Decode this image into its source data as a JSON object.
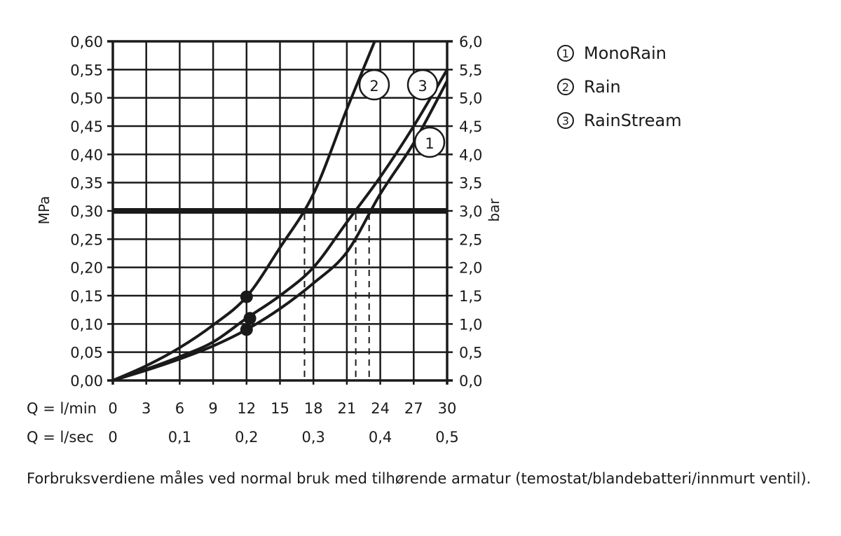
{
  "chart_data": {
    "type": "line",
    "title": "",
    "xlabel": "Q = l/min",
    "xlabel_secondary": "Q = l/sec",
    "ylabel": "MPa",
    "ylabel_right": "bar",
    "xlim": [
      0,
      30
    ],
    "ylim": [
      0,
      0.6
    ],
    "ylim_right": [
      0,
      6.0
    ],
    "grid": true,
    "legend_position": "right",
    "x_ticks": [
      "0",
      "3",
      "6",
      "9",
      "12",
      "15",
      "18",
      "21",
      "24",
      "27",
      "30"
    ],
    "x_ticks_secondary": [
      "0",
      "0,1",
      "0,2",
      "0,3",
      "0,4",
      "0,5"
    ],
    "y_ticks_left": [
      "0,00",
      "0,05",
      "0,10",
      "0,15",
      "0,20",
      "0,25",
      "0,30",
      "0,35",
      "0,40",
      "0,45",
      "0,50",
      "0,55",
      "0,60"
    ],
    "y_ticks_right": [
      "0,0",
      "0,5",
      "1,0",
      "1,5",
      "2,0",
      "2,5",
      "3,0",
      "3,5",
      "4,0",
      "4,5",
      "5,0",
      "5,5",
      "6,0"
    ],
    "reference_line": {
      "y": 0.3,
      "label": "0,30 MPa / 3,0 bar"
    },
    "series": [
      {
        "id": 1,
        "name": "MonoRain",
        "x": [
          0,
          3,
          6,
          9,
          12,
          15,
          18,
          21,
          24,
          27,
          30
        ],
        "y": [
          0,
          0.018,
          0.038,
          0.061,
          0.09,
          0.127,
          0.172,
          0.227,
          0.33,
          0.42,
          0.53
        ],
        "marker": {
          "x": 12,
          "y": 0.09
        },
        "intersect_0_30_x": 23.0
      },
      {
        "id": 2,
        "name": "Rain",
        "x": [
          0,
          3,
          6,
          9,
          12,
          15,
          18,
          21,
          23.5
        ],
        "y": [
          0,
          0.026,
          0.058,
          0.098,
          0.148,
          0.235,
          0.33,
          0.48,
          0.6
        ],
        "marker": {
          "x": 12,
          "y": 0.148
        },
        "intersect_0_30_x": 17.2
      },
      {
        "id": 3,
        "name": "RainStream",
        "x": [
          0,
          3,
          6,
          9,
          12,
          15,
          18,
          21,
          24,
          27,
          30
        ],
        "y": [
          0,
          0.02,
          0.042,
          0.068,
          0.11,
          0.15,
          0.2,
          0.28,
          0.36,
          0.45,
          0.55
        ],
        "marker": {
          "x": 12.3,
          "y": 0.11
        },
        "intersect_0_30_x": 21.8
      }
    ]
  },
  "legend": {
    "items": [
      {
        "num": "1",
        "label": "MonoRain"
      },
      {
        "num": "2",
        "label": "Rain"
      },
      {
        "num": "3",
        "label": "RainStream"
      }
    ]
  },
  "axis_rows": {
    "lmin_label": "Q = l/min",
    "lsec_label": "Q = l/sec"
  },
  "footnote": "Forbruksverdiene måles ved normal bruk med tilhørende armatur (temostat/blandebatteri/innmurt ventil)."
}
